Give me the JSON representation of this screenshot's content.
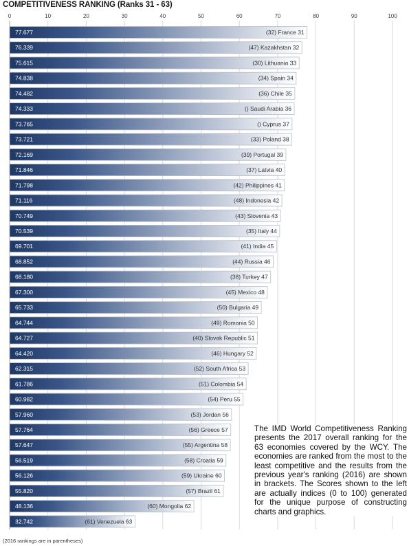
{
  "chart_data": {
    "type": "bar",
    "orientation": "horizontal",
    "title": "COMPETITIVENESS RANKING (Ranks 31 - 63)",
    "xlim": [
      0,
      100
    ],
    "x_ticks": [
      0,
      10,
      20,
      30,
      40,
      50,
      60,
      70,
      80,
      90,
      100
    ],
    "grid": true,
    "categories": [
      "(32) France 31",
      "(47) Kazakhstan 32",
      "(30) Lithuania 33",
      "(34) Spain 34",
      "(36) Chile 35",
      "() Saudi Arabia 36",
      "() Cyprus 37",
      "(33) Poland 38",
      "(39) Portugal 39",
      "(37) Latvia 40",
      "(42) Philippines 41",
      "(48) Indonesia 42",
      "(43) Slovenia 43",
      "(35) Italy 44",
      "(41) India 45",
      "(44) Russia 46",
      "(38) Turkey 47",
      "(45) Mexico 48",
      "(50) Bulgaria 49",
      "(49) Romania 50",
      "(40) Slovak Republic 51",
      "(46) Hungary 52",
      "(52) South Africa 53",
      "(51) Colombia 54",
      "(54) Peru 55",
      "(53) Jordan 56",
      "(56) Greece 57",
      "(55) Argentina 58",
      "(58) Croatia 59",
      "(59) Ukraine 60",
      "(57) Brazil 61",
      "(60) Mongolia 62",
      "(61) Venezuela 63"
    ],
    "values": [
      77.677,
      76.339,
      75.615,
      74.838,
      74.482,
      74.333,
      73.765,
      73.721,
      72.169,
      71.846,
      71.798,
      71.116,
      70.749,
      70.539,
      69.701,
      68.852,
      68.18,
      67.3,
      65.733,
      64.744,
      64.727,
      64.42,
      62.315,
      61.786,
      60.982,
      57.96,
      57.764,
      57.647,
      56.519,
      56.126,
      55.82,
      48.136,
      32.742
    ],
    "value_labels": [
      "77.677",
      "76.339",
      "75.615",
      "74.838",
      "74.482",
      "74.333",
      "73.765",
      "73.721",
      "72.169",
      "71.846",
      "71.798",
      "71.116",
      "70.749",
      "70.539",
      "69.701",
      "68.852",
      "68.180",
      "67.300",
      "65.733",
      "64.744",
      "64.727",
      "64.420",
      "62.315",
      "61.786",
      "60.982",
      "57.960",
      "57.764",
      "57.647",
      "56.519",
      "56.126",
      "55.820",
      "48.136",
      "32.742"
    ],
    "colors": {
      "bar_dark": "#1f3864",
      "bar_light": "#ffffff",
      "bar_border": "#b8bdc6",
      "grid": "#d9d9d9"
    }
  },
  "note": "The IMD World Competitiveness Ranking presents the 2017 overall ranking for the 63 economies covered by the WCY. The economies are ranked from the most to the least competitive and the results from the previous year's ranking (2016) are shown in brackets. The Scores shown to the left are actually indices (0 to 100) generated for the unique purpose of constructing charts and graphics.",
  "footnote": "(2016 rankings are in parentheses)"
}
